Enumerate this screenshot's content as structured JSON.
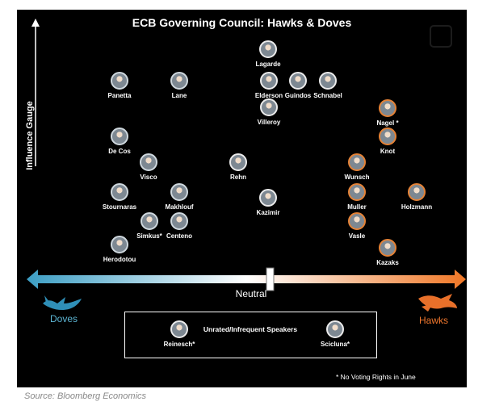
{
  "title": "ECB Governing Council: Hawks & Doves",
  "y_axis_label": "Influence Gauge",
  "scale": {
    "left_label": "Doves",
    "center_label": "Neutral",
    "right_label": "Hawks"
  },
  "members": [
    {
      "name": "Lagarde",
      "stance": "neutral"
    },
    {
      "name": "Elderson",
      "stance": "neutral"
    },
    {
      "name": "Guindos",
      "stance": "neutral"
    },
    {
      "name": "Schnabel",
      "stance": "neutral"
    },
    {
      "name": "Villeroy",
      "stance": "neutral"
    },
    {
      "name": "Panetta",
      "stance": "dove"
    },
    {
      "name": "Lane",
      "stance": "dove"
    },
    {
      "name": "Nagel *",
      "stance": "hawk"
    },
    {
      "name": "Knot",
      "stance": "hawk"
    },
    {
      "name": "De Cos",
      "stance": "dove"
    },
    {
      "name": "Visco",
      "stance": "dove"
    },
    {
      "name": "Rehn",
      "stance": "neutral"
    },
    {
      "name": "Wunsch",
      "stance": "hawk"
    },
    {
      "name": "Stournaras",
      "stance": "dove"
    },
    {
      "name": "Makhlouf",
      "stance": "dove"
    },
    {
      "name": "Kazimir",
      "stance": "neutral"
    },
    {
      "name": "Muller",
      "stance": "hawk"
    },
    {
      "name": "Holzmann",
      "stance": "hawk"
    },
    {
      "name": "Simkus*",
      "stance": "dove"
    },
    {
      "name": "Centeno",
      "stance": "dove"
    },
    {
      "name": "Vasle",
      "stance": "hawk"
    },
    {
      "name": "Herodotou",
      "stance": "dove"
    },
    {
      "name": "Kazaks",
      "stance": "hawk"
    }
  ],
  "unrated": {
    "title": "Unrated/Infrequent Speakers",
    "members": [
      {
        "name": "Reinesch*",
        "stance": "neutral"
      },
      {
        "name": "Scicluna*",
        "stance": "neutral"
      }
    ]
  },
  "footnote": "* No Voting Rights in June",
  "source": "Source: Bloomberg Economics",
  "colors": {
    "dove": "#5cb5d3",
    "hawk": "#f1772d",
    "background": "#000000",
    "text": "#ffffff"
  }
}
